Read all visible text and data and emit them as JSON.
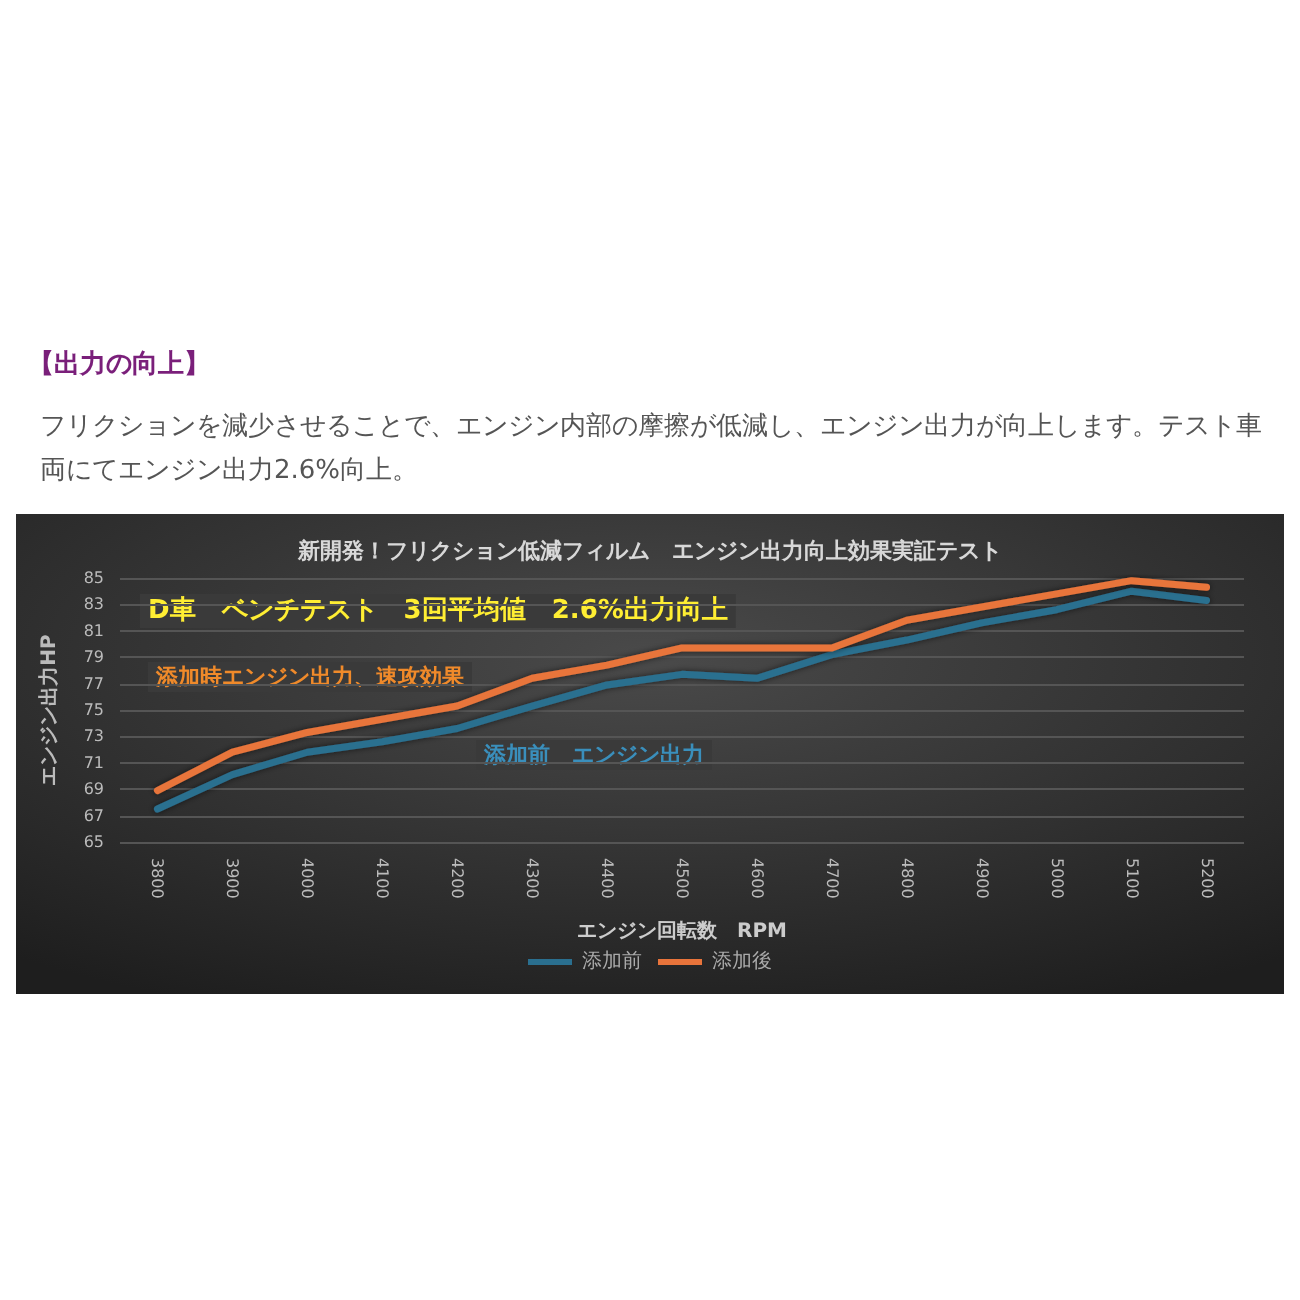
{
  "chart_data": {
    "type": "line",
    "title": "新開発！フリクション低減フィルム　エンジン出力向上効果実証テスト",
    "xlabel": "エンジン回転数　RPM",
    "ylabel": "エンジン出力HP",
    "annotations": [
      "【出力の向上】",
      "フリクションを減少させることで、エンジン内部の摩擦が低減し、エンジン出力が向上します。テスト車両にてエンジン出力2.6%向上。",
      "D車　ベンチテスト　3回平均値　2.6%出力向上",
      "添加時エンジン出力、速攻効果",
      "添加前　エンジン出力"
    ],
    "categories": [
      "3800",
      "3900",
      "4000",
      "4100",
      "4200",
      "4300",
      "4400",
      "4500",
      "4600",
      "4700",
      "4800",
      "4900",
      "5000",
      "5100",
      "5200"
    ],
    "series": [
      {
        "name": "添加前",
        "color": "#2a6f8f",
        "values": [
          67.5,
          70.1,
          71.8,
          72.6,
          73.6,
          75.3,
          76.9,
          77.7,
          77.4,
          79.2,
          80.3,
          81.6,
          82.6,
          84,
          83.3
        ]
      },
      {
        "name": "添加後",
        "color": "#e8743b",
        "values": [
          68.9,
          71.8,
          73.3,
          74.3,
          75.3,
          77.4,
          78.4,
          79.7,
          79.7,
          79.7,
          81.8,
          82.8,
          83.8,
          84.8,
          84.3
        ]
      }
    ],
    "ylim": [
      65,
      85
    ],
    "yticks": [
      65,
      67,
      69,
      71,
      73,
      75,
      77,
      79,
      81,
      83,
      85
    ],
    "grid": "y",
    "legend": "bottom",
    "marker": "none",
    "line_style": "solid"
  }
}
